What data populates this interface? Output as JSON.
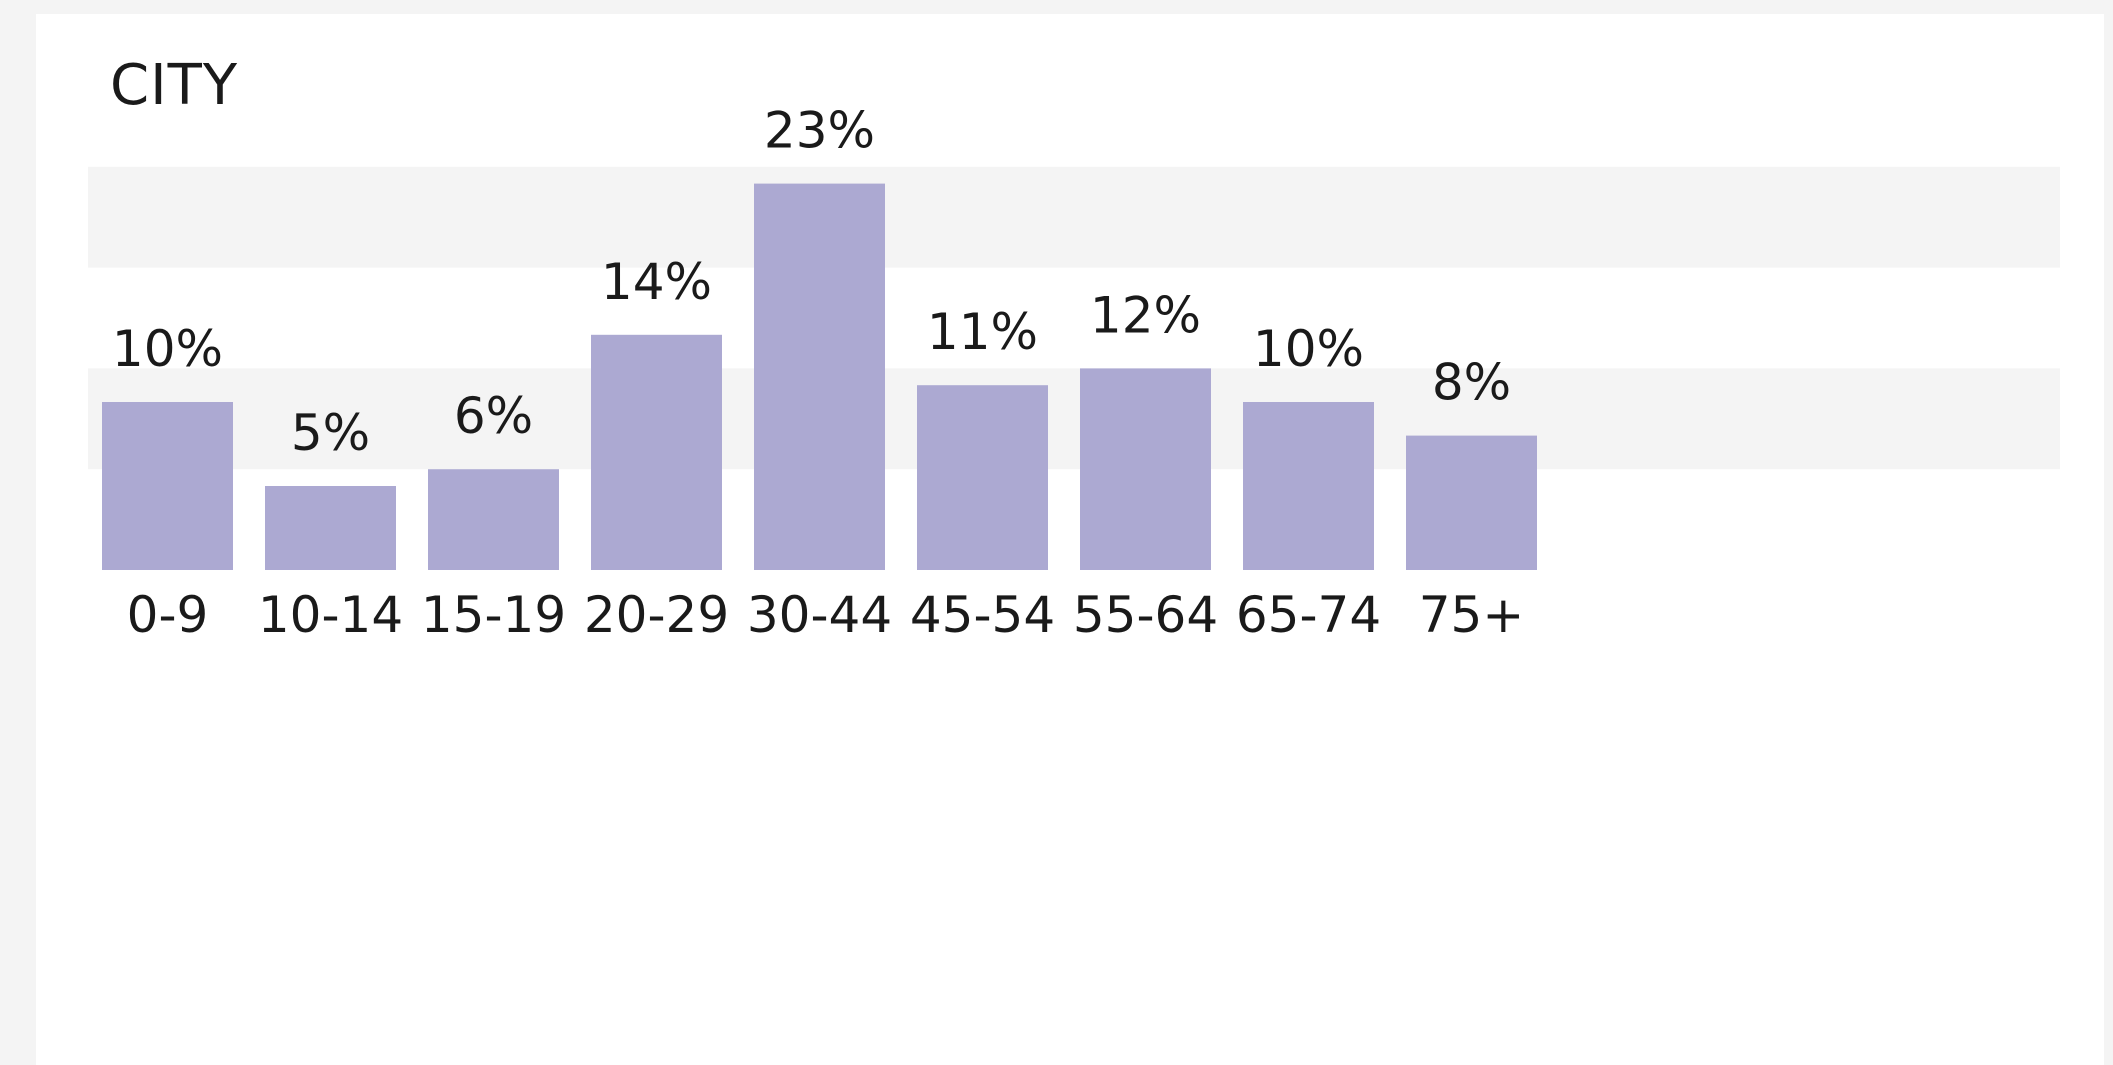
{
  "card": {
    "title": "CITY"
  },
  "chart_data": {
    "type": "bar",
    "title": "CITY",
    "categories": [
      "0-9",
      "10-14",
      "15-19",
      "20-29",
      "30-44",
      "45-54",
      "55-64",
      "65-74",
      "75+"
    ],
    "values": [
      10,
      5,
      6,
      14,
      23,
      11,
      12,
      10,
      8
    ],
    "value_labels": [
      "10%",
      "5%",
      "6%",
      "14%",
      "23%",
      "11%",
      "12%",
      "10%",
      "8%"
    ],
    "xlabel": "",
    "ylabel": "",
    "ylim": [
      0,
      30
    ],
    "grid": "alternating horizontal bands",
    "legend": "none",
    "colors": {
      "bar": "#aca9d2",
      "band": "#f4f4f4",
      "text": "#1a1a1a"
    }
  }
}
